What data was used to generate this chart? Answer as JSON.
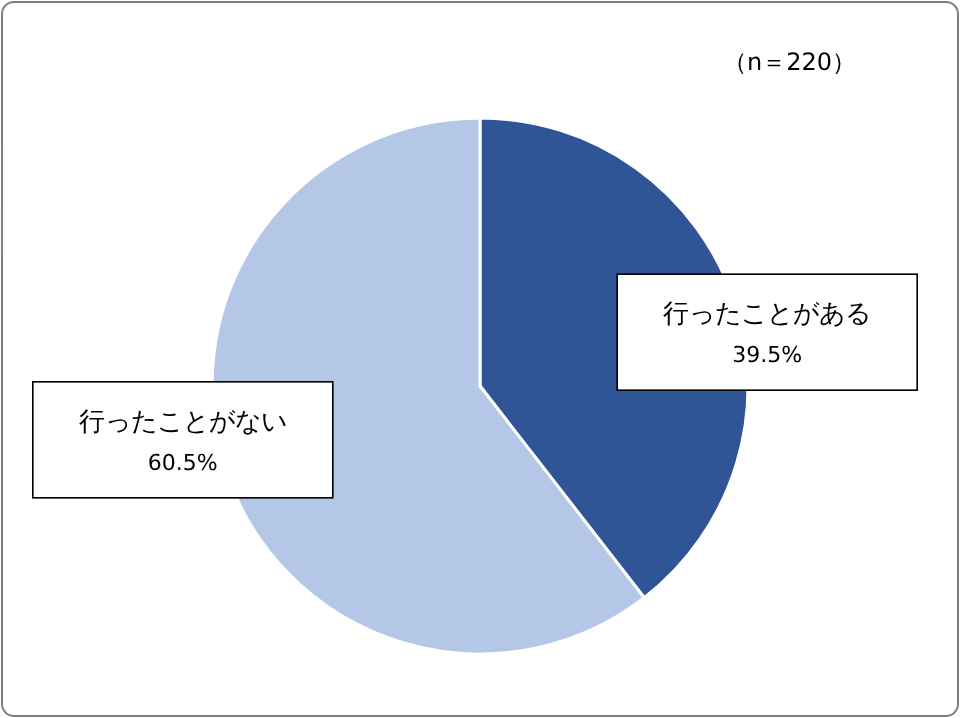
{
  "chart_data": {
    "type": "pie",
    "categories": [
      "行ったことがある",
      "行ったことがない"
    ],
    "values": [
      39.5,
      60.5
    ],
    "colors": [
      "#2f5597",
      "#b4c7e7"
    ],
    "value_labels": [
      "39.5%",
      "60.5%"
    ],
    "annotations": [
      "（n＝220）"
    ]
  }
}
